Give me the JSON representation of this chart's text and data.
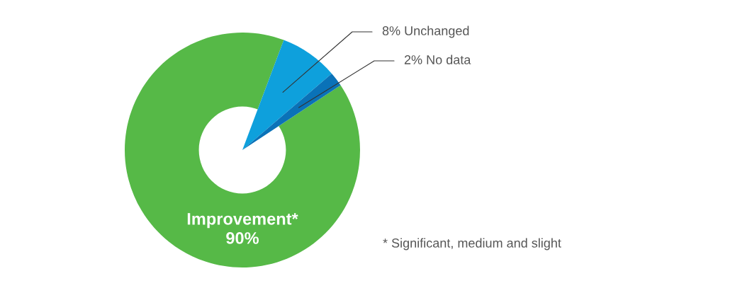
{
  "chart_data": {
    "type": "donut",
    "categories": [
      "Unchanged",
      "No data",
      "Improvement*"
    ],
    "values": [
      8,
      2,
      90
    ],
    "value_labels": [
      "8%",
      "2%",
      "90%"
    ],
    "colors": [
      "#0ea0dc",
      "#0a72b8",
      "#56b947"
    ],
    "annotations": [
      "* Significant, medium and slight"
    ]
  }
}
